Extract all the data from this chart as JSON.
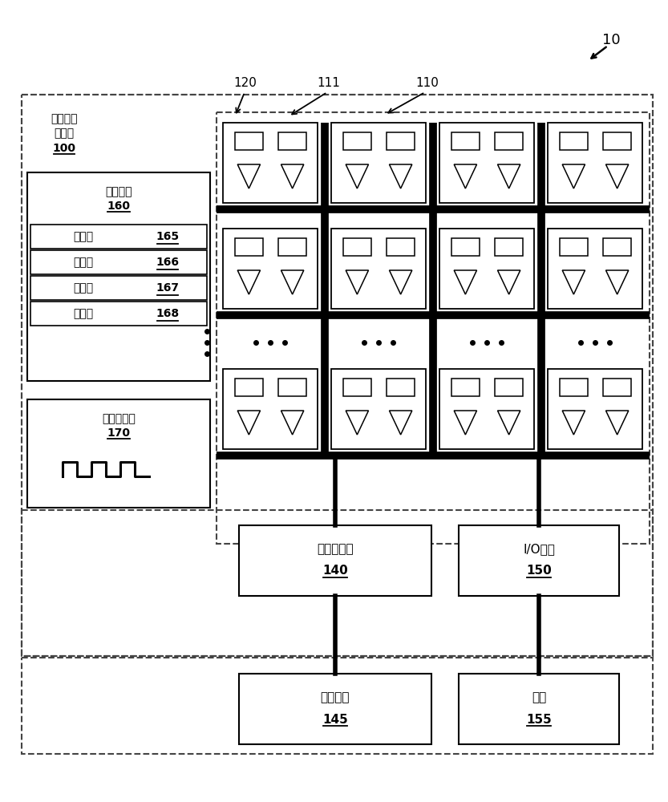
{
  "bg": "#ffffff",
  "ref10": "10",
  "label_jiyu1": "基于块的",
  "label_jiyu2": "处理器",
  "label_100": "100",
  "label_110": "110",
  "label_111": "111",
  "label_120": "120",
  "label_ctrl": "控制单元",
  "label_160": "160",
  "label_sched": "调度器",
  "sched_refs": [
    "165",
    "166",
    "167",
    "168"
  ],
  "label_clk": "时钟发生器",
  "label_170": "170",
  "label_memif": "存储器接口",
  "label_140": "140",
  "label_ioif": "I/O接口",
  "label_150": "150",
  "label_mainmem": "主存储器",
  "label_145": "145",
  "label_parts": "部件",
  "label_155": "155"
}
